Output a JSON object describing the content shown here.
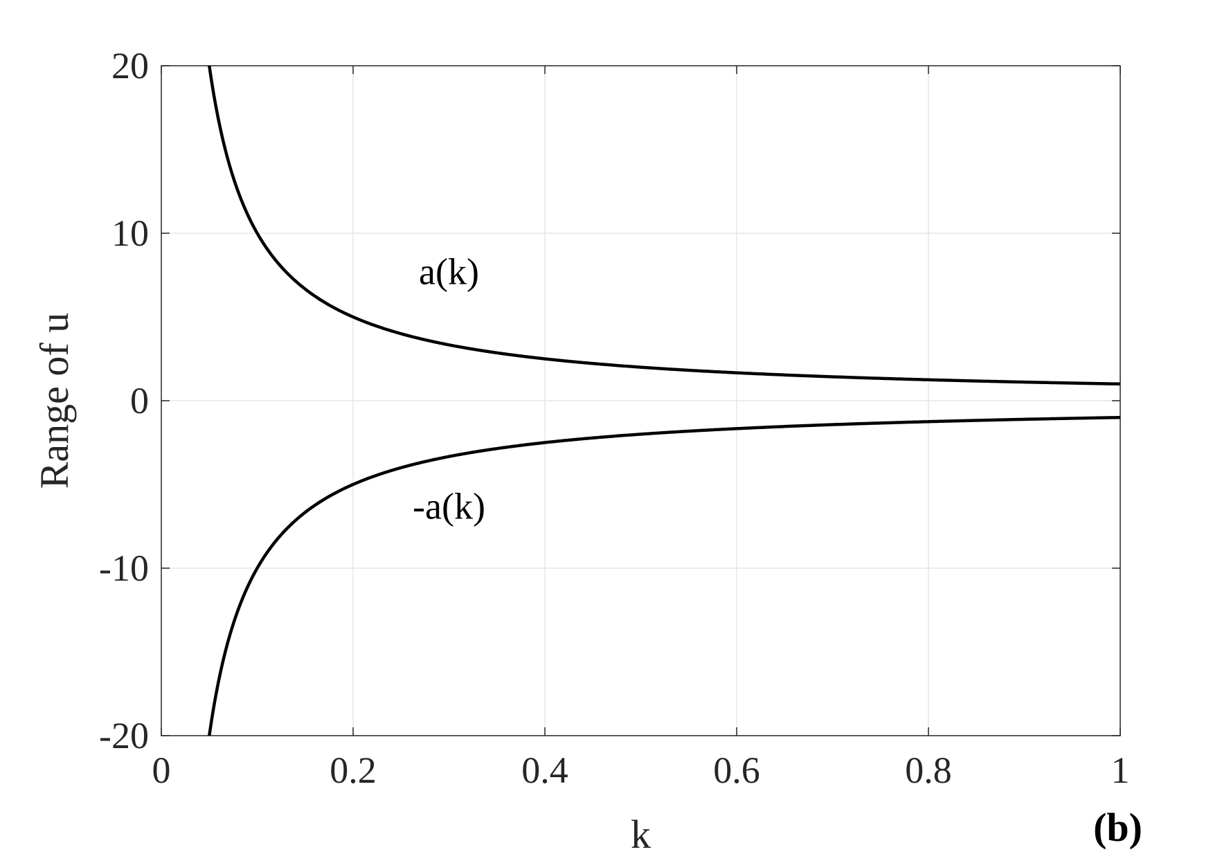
{
  "chart_data": {
    "type": "line",
    "xlabel": "k",
    "ylabel": "Range of u",
    "xlim": [
      0,
      1
    ],
    "ylim": [
      -20,
      20
    ],
    "x_ticks": [
      "0",
      "0.2",
      "0.4",
      "0.6",
      "0.8",
      "1"
    ],
    "x_tick_values": [
      0,
      0.2,
      0.4,
      0.6,
      0.8,
      1
    ],
    "y_ticks": [
      "20",
      "10",
      "0",
      "-10",
      "-20"
    ],
    "y_tick_values": [
      20,
      10,
      0,
      -10,
      -20
    ],
    "grid": true,
    "panel_label": "(b)",
    "series": [
      {
        "name": "a(k)",
        "x": [
          0.05,
          0.06,
          0.07,
          0.08,
          0.09,
          0.1,
          0.12,
          0.15,
          0.2,
          0.25,
          0.3,
          0.4,
          0.5,
          0.6,
          0.7,
          0.8,
          0.9,
          1.0
        ],
        "y": [
          20,
          16.67,
          14.29,
          12.5,
          11.11,
          10,
          8.33,
          6.67,
          5,
          4,
          3.33,
          2.5,
          2,
          1.67,
          1.43,
          1.25,
          1.11,
          1
        ]
      },
      {
        "name": "-a(k)",
        "x": [
          0.05,
          0.06,
          0.07,
          0.08,
          0.09,
          0.1,
          0.12,
          0.15,
          0.2,
          0.25,
          0.3,
          0.4,
          0.5,
          0.6,
          0.7,
          0.8,
          0.9,
          1.0
        ],
        "y": [
          -20,
          -16.67,
          -14.29,
          -12.5,
          -11.11,
          -10,
          -8.33,
          -6.67,
          -5,
          -4,
          -3.33,
          -2.5,
          -2,
          -1.67,
          -1.43,
          -1.25,
          -1.11,
          -1
        ]
      }
    ],
    "annotations": [
      {
        "text": "a(k)",
        "x": 0.3,
        "y": 7.7
      },
      {
        "text": "-a(k)",
        "x": 0.3,
        "y": -6.3
      }
    ],
    "colors": {
      "line": "#000000",
      "grid": "#e6e6e6",
      "axis": "#262626"
    }
  }
}
